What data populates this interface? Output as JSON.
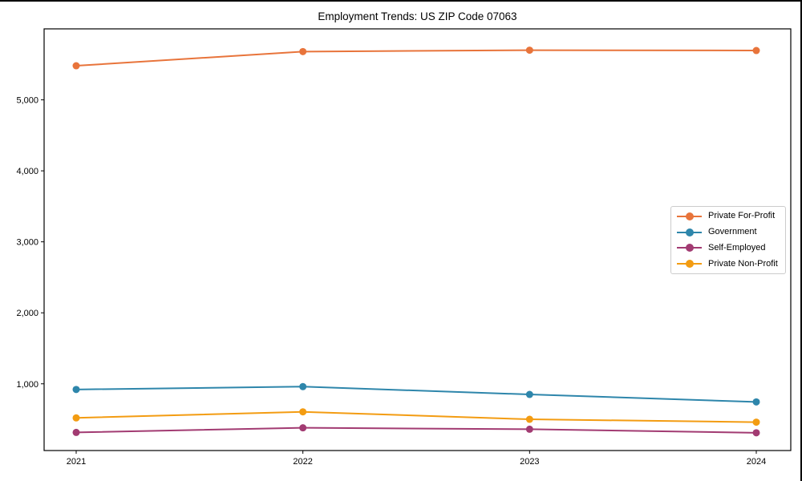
{
  "chart_data": {
    "type": "line",
    "title": "Employment Trends: US ZIP Code 07063",
    "categories": [
      "2021",
      "2022",
      "2023",
      "2024"
    ],
    "series": [
      {
        "name": "Private For-Profit",
        "color": "#E8743B",
        "values": [
          5480,
          5680,
          5700,
          5695
        ]
      },
      {
        "name": "Government",
        "color": "#2E86AB",
        "values": [
          920,
          960,
          850,
          745
        ]
      },
      {
        "name": "Self-Employed",
        "color": "#A23B72",
        "values": [
          315,
          380,
          360,
          310
        ]
      },
      {
        "name": "Private Non-Profit",
        "color": "#F39C12",
        "values": [
          520,
          605,
          500,
          460
        ]
      }
    ],
    "xlabel": "",
    "ylabel": "",
    "y_ticks": [
      {
        "value": 1000,
        "label": "1,000"
      },
      {
        "value": 2000,
        "label": "2,000"
      },
      {
        "value": 3000,
        "label": "3,000"
      },
      {
        "value": 4000,
        "label": "4,000"
      },
      {
        "value": 5000,
        "label": "5,000"
      }
    ],
    "ylim": [
      60,
      6000
    ],
    "grid": false,
    "legend_position": "center right",
    "marker": "circle",
    "axis_color": "#000000",
    "background_color": "#ffffff"
  }
}
